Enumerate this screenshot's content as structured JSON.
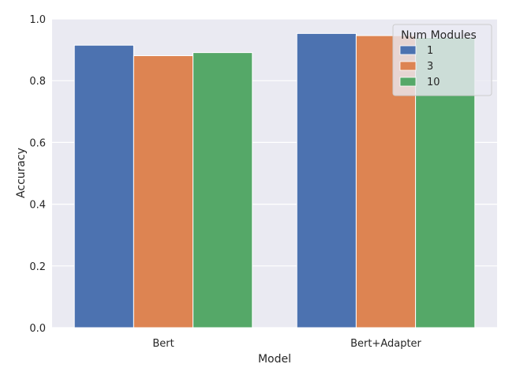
{
  "chart_data": {
    "type": "bar",
    "categories": [
      "Bert",
      "Bert+Adapter"
    ],
    "series": [
      {
        "name": "1",
        "values": [
          0.915,
          0.953
        ],
        "color": "#4c72b0"
      },
      {
        "name": "3",
        "values": [
          0.881,
          0.946
        ],
        "color": "#dd8452"
      },
      {
        "name": "10",
        "values": [
          0.891,
          0.94
        ],
        "color": "#55a868"
      }
    ],
    "xlabel": "Model",
    "ylabel": "Accuracy",
    "ylim": [
      0,
      1.0
    ],
    "yticks": [
      "0.0",
      "0.2",
      "0.4",
      "0.6",
      "0.8",
      "1.0"
    ],
    "grid": true,
    "legend": {
      "title": "Num Modules",
      "placement": "top-right"
    },
    "background": "#eaeaf2"
  }
}
